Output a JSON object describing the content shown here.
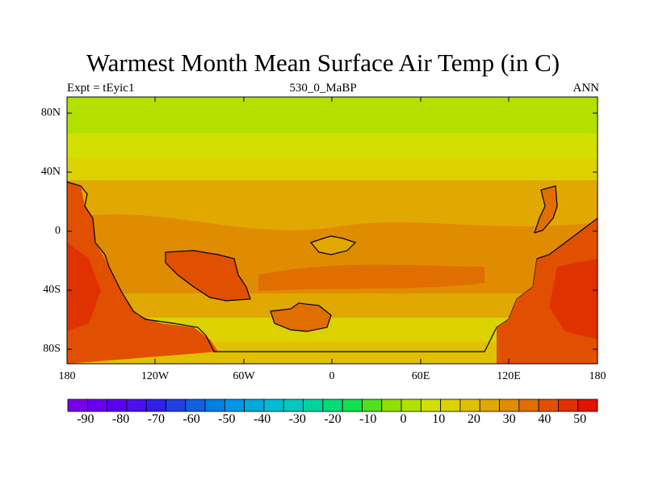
{
  "chart_data": {
    "type": "heatmap",
    "title": "Warmest Month Mean Surface Air Temp (in C)",
    "subtitle_left": "Expt = tEyic1",
    "subtitle_center": "530_0_MaBP",
    "subtitle_right": "ANN",
    "x_ticks": [
      "180",
      "120W",
      "60W",
      "0",
      "60E",
      "120E",
      "180"
    ],
    "y_ticks": [
      "80N",
      "40N",
      "0",
      "40S",
      "80S"
    ],
    "xlim": [
      -180,
      180
    ],
    "ylim": [
      -90,
      90
    ],
    "colorbar": {
      "min": -95,
      "max": 55,
      "step": 5,
      "labels": [
        "-90",
        "-80",
        "-70",
        "-60",
        "-50",
        "-40",
        "-30",
        "-20",
        "-10",
        "0",
        "10",
        "20",
        "30",
        "40",
        "50"
      ],
      "colors": [
        "#7a00e6",
        "#6a00f0",
        "#5a00f0",
        "#4a10f0",
        "#3020e8",
        "#2040e0",
        "#1060e0",
        "#0080e0",
        "#0096e6",
        "#00aadc",
        "#00bcd4",
        "#00c8c0",
        "#00d2a0",
        "#00dc78",
        "#10e050",
        "#50e020",
        "#90e000",
        "#b4e000",
        "#d2e000",
        "#dcd200",
        "#e0c000",
        "#e0a800",
        "#e08c00",
        "#e06e00",
        "#e05000",
        "#e03200",
        "#e01400"
      ]
    },
    "zonal_bands": [
      {
        "lat_range": [
          70,
          90
        ],
        "value": 5
      },
      {
        "lat_range": [
          55,
          70
        ],
        "value": 15
      },
      {
        "lat_range": [
          40,
          55
        ],
        "value": 20
      },
      {
        "lat_range": [
          -10,
          40
        ],
        "value": 30
      },
      {
        "lat_range": [
          -35,
          -10
        ],
        "value": 35
      },
      {
        "lat_range": [
          -55,
          -35
        ],
        "value": 30
      },
      {
        "lat_range": [
          -72,
          -55
        ],
        "value": 20
      },
      {
        "lat_range": [
          -90,
          -72
        ],
        "value": 25
      }
    ],
    "hot_regions": [
      {
        "name": "western continent",
        "value": 45
      },
      {
        "name": "eastern continent",
        "value": 45
      },
      {
        "name": "central land mass",
        "value": 40
      },
      {
        "name": "small island",
        "value": 40
      }
    ]
  }
}
